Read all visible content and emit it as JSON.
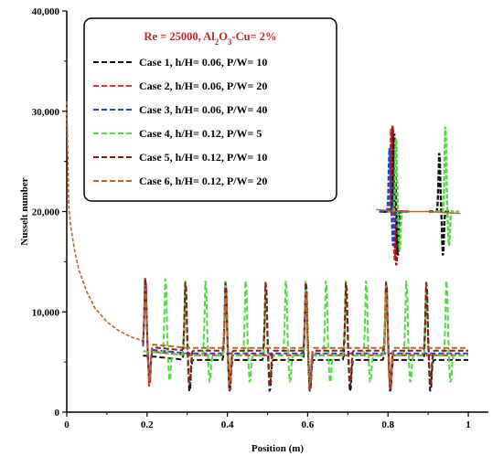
{
  "chart_data": {
    "type": "line",
    "xlabel": "Position (m)",
    "ylabel": "Nusselt number",
    "xlim": [
      0,
      1.05
    ],
    "ylim": [
      0,
      40000
    ],
    "x_ticks": [
      0,
      0.2,
      0.4,
      0.6,
      0.8,
      1
    ],
    "x_tick_labels": [
      "0",
      "0.2",
      "0.4",
      "0.6",
      "0.8",
      "1"
    ],
    "y_ticks": [
      0,
      10000,
      20000,
      30000,
      40000
    ],
    "y_tick_labels": [
      "0",
      "10,000",
      "20,000",
      "30,000",
      "40,000"
    ],
    "grid": false,
    "legend": {
      "placement": "top-left",
      "title_parts": [
        "Re = 25000, Al",
        "2",
        "O",
        "3",
        "-Cu= 2%"
      ],
      "title_color": "#c0262c"
    },
    "entrance_decay": {
      "x": [
        0,
        0.005,
        0.01,
        0.02,
        0.03,
        0.05,
        0.07,
        0.1,
        0.13,
        0.16,
        0.19
      ],
      "y": [
        31000,
        20500,
        18500,
        16000,
        14200,
        12000,
        10400,
        9000,
        8100,
        7500,
        7100
      ]
    },
    "series": [
      {
        "name": "Case 1, h/H= 0.06, P/W= 10",
        "color": "#111111",
        "rib_x": [
          0.3,
          0.4,
          0.5,
          0.6,
          0.7,
          0.8,
          0.9
        ],
        "rib_peak": 12800,
        "rib_trough": 1800,
        "base": 5200
      },
      {
        "name": "Case 2, h/H= 0.06, P/W= 20",
        "color": "#d8322c",
        "rib_x": [
          0.2,
          0.4,
          0.6,
          0.8
        ],
        "rib_peak": 13500,
        "rib_trough": 1800,
        "base": 5600
      },
      {
        "name": "Case 3, h/H= 0.06, P/W= 40",
        "color": "#2b3ec8",
        "rib_x": [
          0.2,
          0.6
        ],
        "rib_peak": 12500,
        "rib_trough": 2500,
        "base": 5700
      },
      {
        "name": "Case 4, h/H= 0.12, P/W= 5",
        "color": "#4ddc3c",
        "rib_x": [
          0.25,
          0.3,
          0.35,
          0.4,
          0.45,
          0.5,
          0.55,
          0.6,
          0.65,
          0.7,
          0.75,
          0.8,
          0.85,
          0.9,
          0.95
        ],
        "rib_peak": 13500,
        "rib_trough": 2500,
        "base": 5400
      },
      {
        "name": "Case 5, h/H= 0.12, P/W= 10",
        "color": "#8a1a1a",
        "rib_x": [
          0.2,
          0.3,
          0.4,
          0.5,
          0.6,
          0.7,
          0.8,
          0.9
        ],
        "rib_peak": 13200,
        "rib_trough": 2000,
        "base": 5800
      },
      {
        "name": "Case 6, h/H= 0.12, P/W= 20",
        "color": "#b8642c",
        "rib_x": [
          0.2,
          0.4,
          0.6,
          0.8
        ],
        "rib_peak": 12000,
        "rib_trough": 2000,
        "base": 6000
      }
    ],
    "inset": {
      "description_free": true,
      "peaks": [
        {
          "color": "#d8322c",
          "dx": 0.0,
          "peak": 28500,
          "trough": 15000
        },
        {
          "color": "#8a1a1a",
          "dx": 0.004,
          "peak": 28800,
          "trough": 14500
        },
        {
          "color": "#111111",
          "dx": 0.008,
          "peak": 28000,
          "trough": 15500
        },
        {
          "color": "#4ddc3c",
          "dx": 0.012,
          "peak": 27500,
          "trough": 16000
        },
        {
          "color": "#2b3ec8",
          "dx": -0.004,
          "peak": 26500,
          "trough": 16500
        },
        {
          "color": "#111111",
          "dx": 0.12,
          "peak": 26000,
          "trough": 15500
        },
        {
          "color": "#4ddc3c",
          "dx": 0.135,
          "peak": 28700,
          "trough": 16500
        }
      ]
    }
  }
}
